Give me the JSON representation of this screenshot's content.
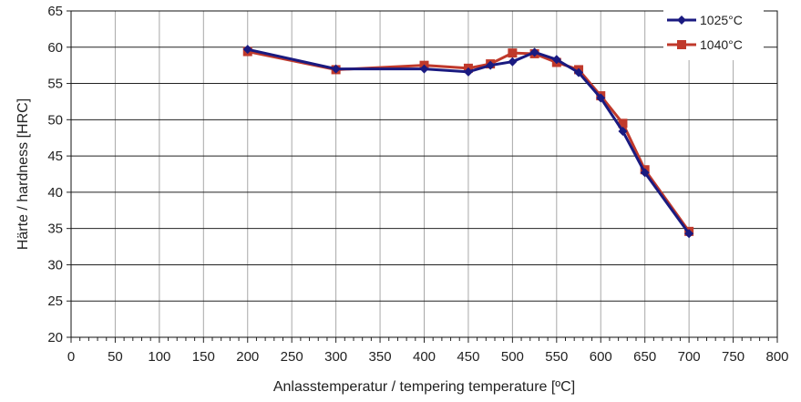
{
  "chart_data": {
    "type": "line",
    "title": "",
    "xlabel": "Anlasstemperatur / tempering temperature [ºC]",
    "ylabel": "Härte / hardness [HRC]",
    "xlim": [
      0,
      800
    ],
    "ylim": [
      20,
      65
    ],
    "x_ticks": [
      0,
      50,
      100,
      150,
      200,
      250,
      300,
      350,
      400,
      450,
      500,
      550,
      600,
      650,
      700,
      750,
      800
    ],
    "y_ticks": [
      20,
      25,
      30,
      35,
      40,
      45,
      50,
      55,
      60,
      65
    ],
    "x_minor_step": 10,
    "grid": true,
    "legend_position": "top-right",
    "series": [
      {
        "name": "1025°C",
        "color": "#1a1a80",
        "marker": "diamond",
        "x": [
          200,
          300,
          400,
          450,
          475,
          500,
          525,
          550,
          575,
          600,
          625,
          650,
          700
        ],
        "y": [
          59.7,
          57.0,
          57.0,
          56.6,
          57.5,
          58.0,
          59.3,
          58.3,
          56.5,
          53.0,
          48.4,
          42.7,
          34.3
        ]
      },
      {
        "name": "1040°C",
        "color": "#c0392b",
        "marker": "square",
        "x": [
          200,
          300,
          400,
          450,
          475,
          500,
          525,
          550,
          575,
          600,
          625,
          650,
          700
        ],
        "y": [
          59.4,
          56.9,
          57.5,
          57.1,
          57.7,
          59.2,
          59.1,
          57.9,
          56.9,
          53.3,
          49.5,
          43.1,
          34.6
        ]
      }
    ]
  }
}
